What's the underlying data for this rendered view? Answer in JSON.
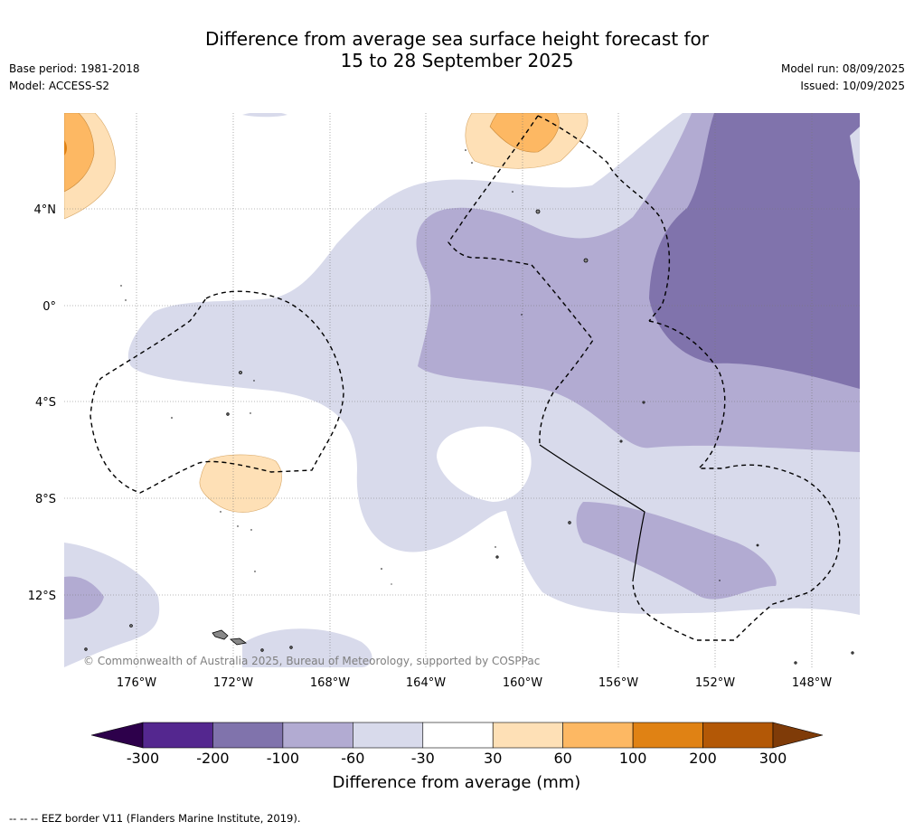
{
  "title": {
    "line1": "Difference from average sea surface height forecast for",
    "line2": "15 to 28 September 2025"
  },
  "meta": {
    "base_period": "Base period: 1981-2018",
    "model": "Model: ACCESS-S2",
    "model_run": "Model run: 08/09/2025",
    "issued": "Issued: 10/09/2025"
  },
  "map": {
    "longitude_labels": [
      "176°W",
      "172°W",
      "168°W",
      "164°W",
      "160°W",
      "156°W",
      "152°W",
      "148°W"
    ],
    "latitude_labels": [
      "4°N",
      "0°",
      "4°S",
      "8°S",
      "12°S"
    ],
    "copyright": "© Commonwealth of Australia 2025, Bureau of Meteorology, supported by COSPPac"
  },
  "colorbar": {
    "ticks": [
      "-300",
      "-200",
      "-100",
      "-60",
      "-30",
      "30",
      "60",
      "100",
      "200",
      "300"
    ],
    "colors": [
      "#54278f",
      "#8073ac",
      "#b2abd2",
      "#d8daeb",
      "#ffffff",
      "#fee0b6",
      "#fdb863",
      "#e08214",
      "#b35806"
    ],
    "low_extend_color": "#2d004b",
    "high_extend_color": "#7f3b08",
    "label": "Difference from average (mm)"
  },
  "footnote": "--  --  -- EEZ border V11 (Flanders Marine Institute, 2019)."
}
